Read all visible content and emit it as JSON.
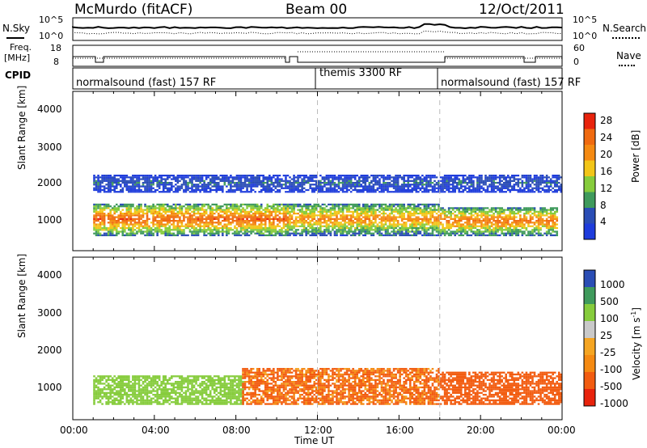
{
  "header": {
    "station": "McMurdo (fitACF)",
    "beam": "Beam 00",
    "date": "12/Oct/2011"
  },
  "noise_panel": {
    "left_label": "N.Sky",
    "right_label": "N.Search",
    "left_ticks": [
      "10^5",
      "10^0"
    ],
    "right_ticks": [
      "10^5",
      "10^0"
    ]
  },
  "freq_panel": {
    "left_label_1": "Freq.",
    "left_label_2": "[MHz]",
    "right_label": "Nave",
    "left_ticks": [
      "18",
      "8"
    ],
    "right_ticks": [
      "60",
      "0"
    ]
  },
  "cpid": {
    "label": "CPID",
    "segments": [
      {
        "name": "normalsound (fast) 157 RF",
        "start_h": 0,
        "end_h": 12
      },
      {
        "name": "themis 3300 RF",
        "start_h": 12,
        "end_h": 18
      },
      {
        "name": "normalsound (fast) 157 RF",
        "start_h": 18,
        "end_h": 24
      }
    ]
  },
  "colors": {
    "grid_dash": "#bbbbbb",
    "power_scale": [
      "#1e3cdc",
      "#2a4db5",
      "#3f9a5c",
      "#86cc3c",
      "#f2c518",
      "#f58a12",
      "#f06a10",
      "#e8230c"
    ],
    "velocity_scale": [
      "#e8230c",
      "#f25c10",
      "#f58a12",
      "#f5a522",
      "#c9c9c9",
      "#86cc3c",
      "#3f9a5c",
      "#2a4db5"
    ]
  },
  "chart_data": [
    {
      "type": "heatmap",
      "panel": "power",
      "ylabel": "Slant Range [km]",
      "yticks": [
        "1000",
        "2000",
        "3000",
        "4000"
      ],
      "ylim": [
        200,
        4600
      ],
      "xlim": [
        0,
        24
      ],
      "colorbar_label": "Power [dB]",
      "colorbar_ticks": [
        "4",
        "8",
        "12",
        "16",
        "20",
        "24",
        "28"
      ],
      "colorbar_range": [
        0,
        32
      ],
      "echo_bands": [
        {
          "start_h": 1.0,
          "end_h": 10.5,
          "low_km": 600,
          "high_km": 1500,
          "peak_db": 30
        },
        {
          "start_h": 10.5,
          "end_h": 18.0,
          "low_km": 600,
          "high_km": 1500,
          "peak_db": 26
        },
        {
          "start_h": 18.0,
          "end_h": 23.8,
          "low_km": 600,
          "high_km": 1400,
          "peak_db": 28
        },
        {
          "start_h": 1.0,
          "end_h": 24.0,
          "low_km": 1800,
          "high_km": 2300,
          "peak_db": 10
        }
      ]
    },
    {
      "type": "heatmap",
      "panel": "velocity",
      "ylabel": "Slant Range [km]",
      "yticks": [
        "1000",
        "2000",
        "3000",
        "4000"
      ],
      "ylim": [
        200,
        4600
      ],
      "xlim": [
        0,
        24
      ],
      "colorbar_label": "Velocity [m s",
      "colorbar_label_sup": "-1",
      "colorbar_label_end": "]",
      "colorbar_ticks": [
        "1000",
        "500",
        "100",
        "25",
        "-25",
        "-100",
        "-500",
        "-1000"
      ],
      "echo_bands": [
        {
          "start_h": 1.0,
          "end_h": 8.3,
          "low_km": 600,
          "high_km": 1400,
          "velocity": 300
        },
        {
          "start_h": 8.3,
          "end_h": 18.0,
          "low_km": 600,
          "high_km": 1600,
          "velocity": -150
        },
        {
          "start_h": 18.0,
          "end_h": 24.0,
          "low_km": 600,
          "high_km": 1500,
          "velocity": -300
        }
      ]
    }
  ],
  "x_axis": {
    "ticks": [
      "00:00",
      "04:00",
      "08:00",
      "12:00",
      "16:00",
      "20:00",
      "00:00"
    ],
    "label": "Time UT"
  }
}
